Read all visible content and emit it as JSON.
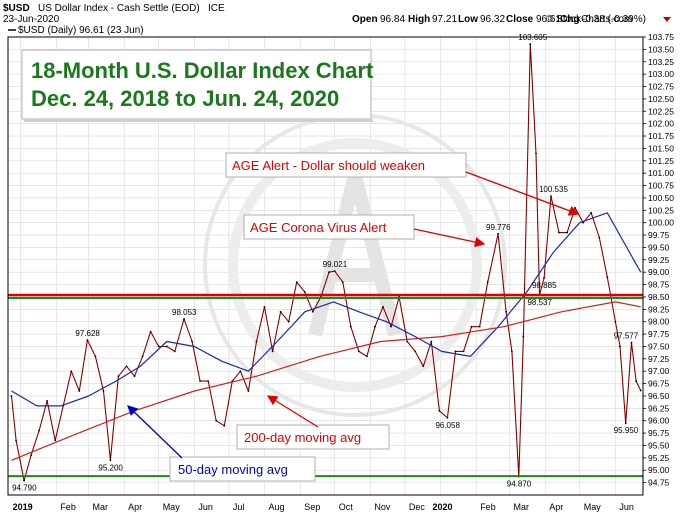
{
  "header": {
    "symbol": "$USD",
    "name": "US Dollar Index - Cash Settle (EOD)",
    "exchange": "ICE",
    "date": "23-Jun-2020",
    "watermark": "© StockCharts.com",
    "open_label": "Open",
    "open": "96.84",
    "high_label": "High",
    "high": "97.21",
    "low_label": "Low",
    "low": "96.32",
    "close_label": "Close",
    "close": "96.61",
    "chg_label": "Chg",
    "chg": "-0.38 (-0.39%)",
    "legend": "$USD (Daily) 96.61 (23 Jun)"
  },
  "title_box": {
    "line1": "18-Month U.S. Dollar Index Chart",
    "line2": "Dec. 24, 2018 to Jun. 24, 2020"
  },
  "annotations": {
    "age_alert": "AGE Alert - Dollar should weaken",
    "corona_alert": "AGE Corona Virus Alert",
    "ma200": "200-day moving avg",
    "ma50": "50-day moving avg"
  },
  "colors": {
    "price": "#c00000",
    "price_dark": "#000000",
    "ma50": "#1a2aa8",
    "ma200": "#d02020",
    "red_hline": "#e00000",
    "green_hline": "#1a8a1a",
    "title": "#1a7a1a",
    "annotation_red": "#e00000",
    "annotation_blue": "#0000cc"
  },
  "chart_data": {
    "type": "line",
    "title": "18-Month U.S. Dollar Index Chart",
    "subtitle": "Dec. 24, 2018 to Jun. 24, 2020",
    "ylim": [
      94.5,
      103.75
    ],
    "y_ticks": [
      "94.75",
      "95.00",
      "95.25",
      "95.50",
      "95.75",
      "96.00",
      "96.25",
      "96.50",
      "96.75",
      "97.00",
      "97.25",
      "97.50",
      "97.75",
      "98.00",
      "98.25",
      "98.50",
      "98.75",
      "99.00",
      "99.25",
      "99.50",
      "99.75",
      "100.00",
      "100.25",
      "100.50",
      "100.75",
      "101.00",
      "101.25",
      "101.50",
      "101.75",
      "102.00",
      "102.25",
      "102.50",
      "102.75",
      "103.00",
      "103.25",
      "103.50",
      "103.75"
    ],
    "x_ticks": [
      "2019",
      "Feb",
      "Mar",
      "Apr",
      "May",
      "Jun",
      "Jul",
      "Aug",
      "Sep",
      "Oct",
      "Nov",
      "Dec",
      "2020",
      "Feb",
      "Mar",
      "Apr",
      "May",
      "Jun"
    ],
    "grid": true,
    "horizontal_lines": [
      {
        "name": "red",
        "value": 98.5
      },
      {
        "name": "green-top",
        "value": 98.5
      },
      {
        "name": "green-bottom",
        "value": 94.88
      }
    ],
    "labels": [
      {
        "text": "94.790",
        "x": "2019-01-04",
        "y": 94.79
      },
      {
        "text": "97.628",
        "x": "2019-02-28",
        "y": 97.628
      },
      {
        "text": "95.200",
        "x": "2019-03-20",
        "y": 95.2
      },
      {
        "text": "98.053",
        "x": "2019-05-23",
        "y": 98.053
      },
      {
        "text": "99.021",
        "x": "2019-10-01",
        "y": 99.021
      },
      {
        "text": "96.058",
        "x": "2020-01-07",
        "y": 96.058
      },
      {
        "text": "99.776",
        "x": "2020-02-20",
        "y": 99.776
      },
      {
        "text": "103.605",
        "x": "2020-03-19",
        "y": 103.605
      },
      {
        "text": "94.870",
        "x": "2020-03-09",
        "y": 94.87
      },
      {
        "text": "100.535",
        "x": "2020-04-06",
        "y": 100.535
      },
      {
        "text": "98.885",
        "x": "2020-03-31",
        "y": 98.885
      },
      {
        "text": "98.537",
        "x": "2020-03-27",
        "y": 98.537
      },
      {
        "text": "97.577",
        "x": "2020-06-10",
        "y": 97.577
      },
      {
        "text": "95.950",
        "x": "2020-06-10",
        "y": 95.95
      }
    ],
    "series": [
      {
        "name": "$USD (Daily)",
        "x": [
          "2018-12-24",
          "2018-12-28",
          "2019-01-04",
          "2019-01-10",
          "2019-01-17",
          "2019-01-24",
          "2019-01-31",
          "2019-02-07",
          "2019-02-14",
          "2019-02-21",
          "2019-02-28",
          "2019-03-07",
          "2019-03-14",
          "2019-03-20",
          "2019-03-27",
          "2019-04-03",
          "2019-04-10",
          "2019-04-17",
          "2019-04-24",
          "2019-05-01",
          "2019-05-08",
          "2019-05-15",
          "2019-05-23",
          "2019-05-30",
          "2019-06-06",
          "2019-06-13",
          "2019-06-20",
          "2019-06-27",
          "2019-07-04",
          "2019-07-11",
          "2019-07-18",
          "2019-07-25",
          "2019-08-01",
          "2019-08-08",
          "2019-08-15",
          "2019-08-22",
          "2019-08-29",
          "2019-09-05",
          "2019-09-12",
          "2019-09-19",
          "2019-09-26",
          "2019-10-01",
          "2019-10-08",
          "2019-10-15",
          "2019-10-22",
          "2019-10-29",
          "2019-11-05",
          "2019-11-12",
          "2019-11-19",
          "2019-11-26",
          "2019-12-03",
          "2019-12-10",
          "2019-12-17",
          "2019-12-24",
          "2019-12-31",
          "2020-01-07",
          "2020-01-14",
          "2020-01-21",
          "2020-01-28",
          "2020-02-04",
          "2020-02-11",
          "2020-02-20",
          "2020-02-27",
          "2020-03-03",
          "2020-03-09",
          "2020-03-13",
          "2020-03-19",
          "2020-03-24",
          "2020-03-27",
          "2020-03-31",
          "2020-04-06",
          "2020-04-13",
          "2020-04-20",
          "2020-04-27",
          "2020-05-04",
          "2020-05-11",
          "2020-05-18",
          "2020-05-25",
          "2020-06-01",
          "2020-06-05",
          "2020-06-10",
          "2020-06-15",
          "2020-06-19",
          "2020-06-23"
        ],
        "values": [
          96.5,
          95.6,
          94.79,
          95.3,
          95.8,
          96.4,
          95.6,
          96.3,
          97.0,
          96.6,
          97.628,
          97.3,
          96.6,
          95.2,
          96.9,
          97.1,
          96.9,
          97.3,
          97.8,
          97.5,
          97.5,
          97.4,
          98.053,
          97.6,
          96.8,
          96.8,
          96.0,
          95.9,
          96.8,
          97.0,
          96.6,
          97.6,
          98.3,
          97.4,
          98.2,
          98.0,
          98.8,
          98.6,
          98.2,
          98.5,
          99.0,
          99.021,
          98.8,
          97.9,
          97.4,
          97.3,
          97.9,
          98.3,
          97.9,
          98.5,
          97.6,
          97.4,
          97.1,
          97.6,
          96.2,
          96.058,
          97.4,
          97.4,
          97.9,
          97.9,
          98.8,
          99.776,
          98.2,
          97.4,
          94.87,
          97.7,
          103.605,
          101.4,
          98.537,
          98.885,
          100.535,
          99.8,
          99.8,
          100.3,
          100.0,
          100.2,
          99.7,
          98.9,
          98.0,
          97.5,
          95.95,
          97.577,
          96.8,
          96.61
        ]
      },
      {
        "name": "50-day moving avg",
        "x": [
          "2018-12-24",
          "2019-01-15",
          "2019-02-05",
          "2019-03-01",
          "2019-03-25",
          "2019-04-15",
          "2019-05-08",
          "2019-06-01",
          "2019-06-25",
          "2019-07-18",
          "2019-08-12",
          "2019-09-05",
          "2019-09-30",
          "2019-10-22",
          "2019-11-15",
          "2019-12-10",
          "2020-01-02",
          "2020-01-27",
          "2020-02-20",
          "2020-03-16",
          "2020-04-08",
          "2020-05-01",
          "2020-05-25",
          "2020-06-23"
        ],
        "values": [
          96.6,
          96.3,
          96.3,
          96.5,
          96.8,
          97.1,
          97.6,
          97.5,
          97.2,
          97.0,
          97.6,
          98.2,
          98.4,
          98.2,
          98.0,
          97.7,
          97.4,
          97.3,
          97.9,
          98.6,
          99.4,
          100.0,
          100.2,
          99.0
        ]
      },
      {
        "name": "200-day moving avg",
        "x": [
          "2018-12-24",
          "2019-02-15",
          "2019-04-10",
          "2019-06-01",
          "2019-07-25",
          "2019-09-18",
          "2019-11-10",
          "2020-01-02",
          "2020-02-25",
          "2020-04-15",
          "2020-06-01",
          "2020-06-23"
        ],
        "values": [
          95.2,
          95.7,
          96.2,
          96.6,
          96.9,
          97.3,
          97.6,
          97.7,
          97.9,
          98.2,
          98.4,
          98.3
        ]
      }
    ]
  }
}
